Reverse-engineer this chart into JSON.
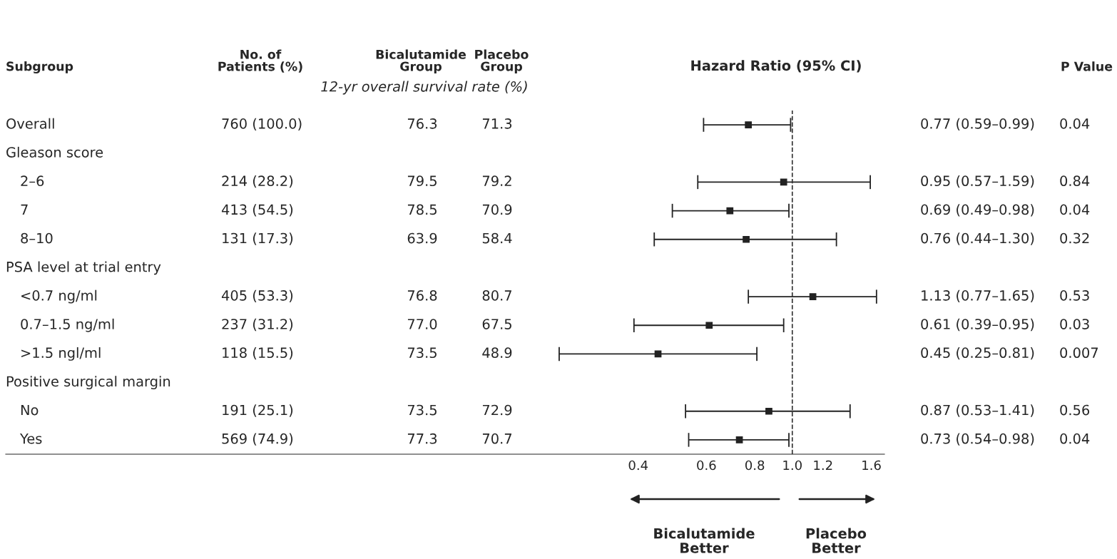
{
  "chart_data": {
    "type": "scatter",
    "xlabel": "Hazard Ratio (95% CI)",
    "categories": [
      "Overall",
      "Gleason score",
      "2–6",
      "7",
      "8–10",
      "PSA level at trial entry",
      "<0.7 ng/ml",
      "0.7–1.5 ng/ml",
      ">1.5 ngl/ml",
      "Positive surgical margin",
      "No",
      "Yes"
    ],
    "values": [
      0.77,
      null,
      0.95,
      0.69,
      0.76,
      null,
      1.13,
      0.61,
      0.45,
      null,
      0.87,
      0.73
    ],
    "errors": [
      [
        0.59,
        0.99
      ],
      null,
      [
        0.57,
        1.59
      ],
      [
        0.49,
        0.98
      ],
      [
        0.44,
        1.3
      ],
      null,
      [
        0.77,
        1.65
      ],
      [
        0.39,
        0.95
      ],
      [
        0.25,
        0.81
      ],
      null,
      [
        0.53,
        1.41
      ],
      [
        0.54,
        0.98
      ]
    ],
    "value_labels": [
      "0.77 (0.59–0.99)",
      null,
      "0.95 (0.57–1.59)",
      "0.69 (0.49–0.98)",
      "0.76 (0.44–1.30)",
      null,
      "1.13 (0.77–1.65)",
      "0.61 (0.39–0.95)",
      "0.45 (0.25–0.81)",
      null,
      "0.87 (0.53–1.41)",
      "0.73 (0.54–0.98)"
    ],
    "cell_labels": [
      [
        "760 (100.0)",
        "76.3",
        "71.3",
        "0.04"
      ],
      null,
      [
        "214 (28.2)",
        "79.5",
        "79.2",
        "0.84"
      ],
      [
        "413 (54.5)",
        "78.5",
        "70.9",
        "0.04"
      ],
      [
        "131 (17.3)",
        "63.9",
        "58.4",
        "0.32"
      ],
      null,
      [
        "405 (53.3)",
        "76.8",
        "80.7",
        "0.53"
      ],
      [
        "237 (31.2)",
        "77.0",
        "67.5",
        "0.03"
      ],
      [
        "118 (15.5)",
        "73.5",
        "48.9",
        "0.007"
      ],
      null,
      [
        "191 (25.1)",
        "73.5",
        "72.9",
        "0.56"
      ],
      [
        "569 (74.9)",
        "77.3",
        "70.7",
        "0.04"
      ]
    ],
    "annotations": [
      "Subgroup",
      "No. of\nPatients (%)",
      "Bicalutamide\nGroup",
      "Placebo\nGroup",
      "P Value",
      "12-yr overall survival rate (%)",
      "Bicalutamide\nBetter",
      "Placebo\nBetter"
    ],
    "color": "#222222",
    "orientation": "horizontal",
    "marker": "square",
    "log": "x",
    "xlim": [
      0.0093,
      1.73
    ],
    "xticks": [
      0.4,
      0.6,
      0.8,
      {
        "value": 1.0,
        "label": "1.0"
      },
      1.2,
      1.6
    ],
    "ref_lines": [
      {
        "axis": "x",
        "value": 1.0,
        "line_style": "dashed",
        "color": "#333333"
      }
    ],
    "grid": false
  }
}
